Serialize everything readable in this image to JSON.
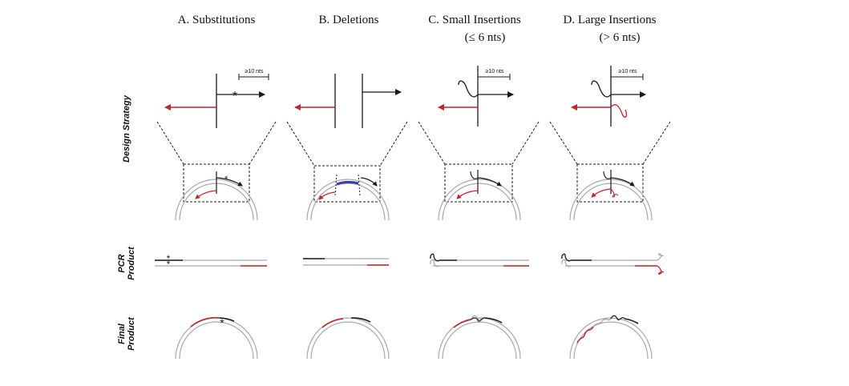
{
  "columns": [
    {
      "title_line1": "A. Substitutions",
      "title_line2": ""
    },
    {
      "title_line1": "B. Deletions",
      "title_line2": ""
    },
    {
      "title_line1": "C. Small Insertions",
      "title_line2": "(≤ 6 nts)"
    },
    {
      "title_line1": "D. Large Insertions",
      "title_line2": "(> 6 nts)"
    }
  ],
  "rows": {
    "design_strategy": "Design Strategy",
    "pcr_product_line1": "PCR",
    "pcr_product_line2": "Product",
    "final_product_line1": "Final",
    "final_product_line2": "Product"
  },
  "annotations": {
    "min_overlap": "≥10 nts",
    "mutation_marker": "*"
  },
  "colors": {
    "primer_forward": "#1a1a1a",
    "primer_reverse": "#c0262d",
    "template_strand": "#a8a8a8",
    "deleted_region": "#3b3bb0"
  }
}
